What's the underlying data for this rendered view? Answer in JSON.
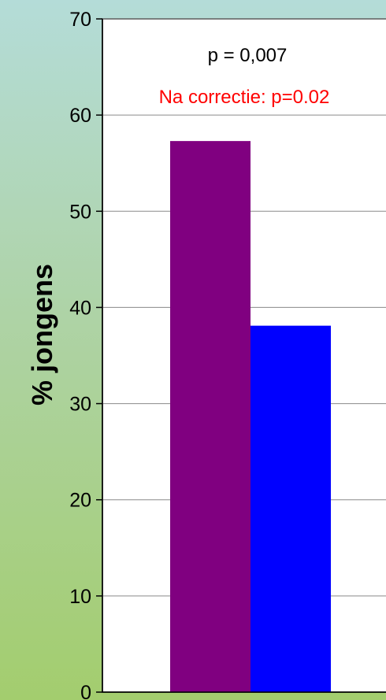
{
  "chart_data": {
    "type": "bar",
    "categories": [
      "",
      ""
    ],
    "values": [
      57.3,
      38.1
    ],
    "colors": [
      "#800080",
      "#0000ff"
    ],
    "ylabel": "% jongens",
    "ylim": [
      0,
      70
    ],
    "yticks": [
      0,
      10,
      20,
      30,
      40,
      50,
      60,
      70
    ],
    "grid": true,
    "annotations": [
      {
        "text": "p = 0,007",
        "color": "#000000"
      },
      {
        "text": "Na correctie: p=0.02",
        "color": "#ff0000"
      }
    ]
  }
}
